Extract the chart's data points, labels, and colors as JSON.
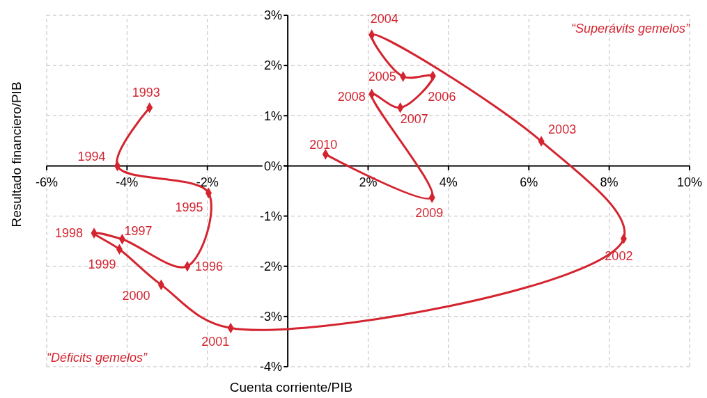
{
  "chart_data": {
    "type": "line",
    "xlabel": "Cuenta corriente/PIB",
    "ylabel": "Resultado financiero/PIB",
    "x": [
      -3.44,
      -4.24,
      -1.97,
      -2.5,
      -4.12,
      -4.82,
      -4.19,
      -3.15,
      -1.42,
      8.36,
      6.31,
      2.09,
      2.87,
      3.61,
      2.8,
      2.09,
      3.59,
      0.94
    ],
    "series": [
      {
        "color": "#d4242f",
        "values": [
          1.16,
          0.0,
          -0.54,
          -2.0,
          -1.46,
          -1.34,
          -1.66,
          -2.37,
          -3.23,
          -1.45,
          0.49,
          2.61,
          1.78,
          1.79,
          1.16,
          1.43,
          -0.63,
          0.23
        ]
      }
    ],
    "xlim": [
      -6,
      10
    ],
    "ylim": [
      -4,
      3
    ],
    "xticks": [
      {
        "value": -6,
        "label": "-6%"
      },
      {
        "value": -4,
        "label": "-4%"
      },
      {
        "value": -2,
        "label": "-2%"
      },
      {
        "value": 0,
        "label": null
      },
      {
        "value": 2,
        "label": "2%"
      },
      {
        "value": 4,
        "label": "4%"
      },
      {
        "value": 6,
        "label": "6%"
      },
      {
        "value": 8,
        "label": "8%"
      },
      {
        "value": 10,
        "label": "10%"
      }
    ],
    "yticks": [
      {
        "value": -4,
        "label": "-4%"
      },
      {
        "value": -3,
        "label": "-3%"
      },
      {
        "value": -2,
        "label": "-2%"
      },
      {
        "value": -1,
        "label": "-1%"
      },
      {
        "value": 0,
        "label": "0%"
      },
      {
        "value": 1,
        "label": "1%"
      },
      {
        "value": 2,
        "label": "2%"
      },
      {
        "value": 3,
        "label": "3%"
      }
    ],
    "grid": true,
    "marker": "diamond",
    "line_style": "solid",
    "annotations": [
      {
        "text": "1993",
        "x": -3.44,
        "y": 1.16
      },
      {
        "text": "1994",
        "x": -4.24,
        "y": 0.0
      },
      {
        "text": "1995",
        "x": -1.97,
        "y": -0.54
      },
      {
        "text": "1996",
        "x": -2.5,
        "y": -2.0
      },
      {
        "text": "1997",
        "x": -4.12,
        "y": -1.46
      },
      {
        "text": "1998",
        "x": -4.82,
        "y": -1.34
      },
      {
        "text": "1999",
        "x": -4.19,
        "y": -1.66
      },
      {
        "text": "2000",
        "x": -3.15,
        "y": -2.37
      },
      {
        "text": "2001",
        "x": -1.42,
        "y": -3.23
      },
      {
        "text": "2002",
        "x": 8.36,
        "y": -1.45
      },
      {
        "text": "2003",
        "x": 6.31,
        "y": 0.49
      },
      {
        "text": "2004",
        "x": 2.09,
        "y": 2.61
      },
      {
        "text": "2005",
        "x": 2.87,
        "y": 1.78
      },
      {
        "text": "2006",
        "x": 3.61,
        "y": 1.79
      },
      {
        "text": "2007",
        "x": 2.8,
        "y": 1.16
      },
      {
        "text": "2008",
        "x": 2.09,
        "y": 1.43
      },
      {
        "text": "2009",
        "x": 3.59,
        "y": -0.63
      },
      {
        "text": "2010",
        "x": 0.94,
        "y": 0.23
      },
      "“Superávits gemelos”",
      "“Déficits gemelos”"
    ]
  }
}
